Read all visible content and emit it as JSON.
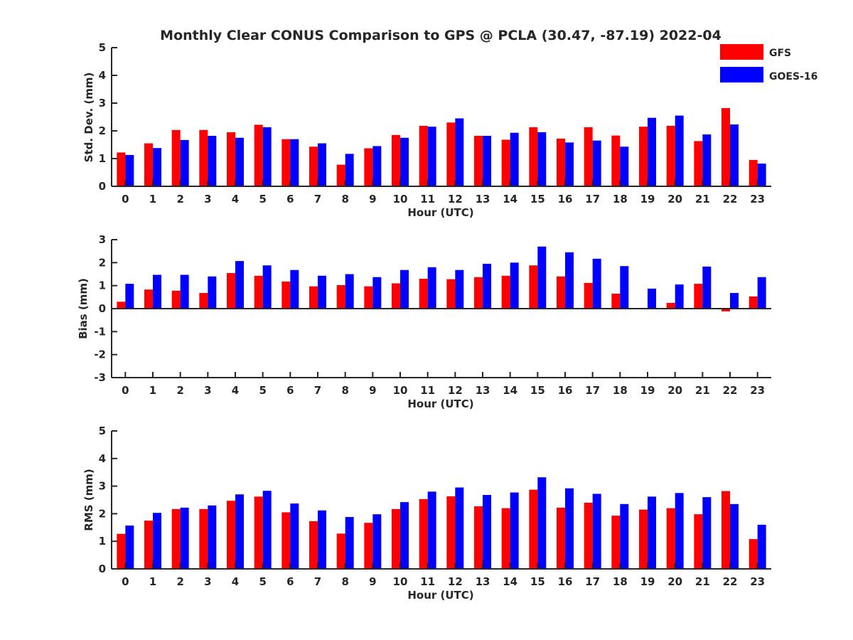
{
  "title": "Monthly Clear CONUS Comparison to GPS @ PCLA (30.47, -87.19) 2022-04",
  "legend": {
    "placement": "top-right",
    "items": [
      {
        "label": "GFS",
        "color": "#ff0000"
      },
      {
        "label": "GOES-16",
        "color": "#0000ff"
      }
    ]
  },
  "chart_data": [
    {
      "type": "bar",
      "xlabel": "Hour (UTC)",
      "ylabel": "Std. Dev. (mm)",
      "ylim": [
        0,
        5
      ],
      "yticks": [
        0,
        1,
        2,
        3,
        4,
        5
      ],
      "categories": [
        "0",
        "1",
        "2",
        "3",
        "4",
        "5",
        "6",
        "7",
        "8",
        "9",
        "10",
        "11",
        "12",
        "13",
        "14",
        "15",
        "16",
        "17",
        "18",
        "19",
        "20",
        "21",
        "22",
        "23"
      ],
      "series": [
        {
          "name": "GFS",
          "color": "#ff0000",
          "values": [
            1.22,
            1.55,
            2.03,
            2.03,
            1.95,
            2.22,
            1.7,
            1.43,
            0.78,
            1.37,
            1.85,
            2.18,
            2.3,
            1.82,
            1.68,
            2.13,
            1.72,
            2.13,
            1.83,
            2.15,
            2.18,
            1.63,
            2.82,
            0.95
          ]
        },
        {
          "name": "GOES-16",
          "color": "#0000ff",
          "values": [
            1.13,
            1.38,
            1.67,
            1.82,
            1.75,
            2.13,
            1.7,
            1.55,
            1.17,
            1.45,
            1.75,
            2.15,
            2.45,
            1.82,
            1.93,
            1.95,
            1.58,
            1.65,
            1.43,
            2.47,
            2.55,
            1.87,
            2.23,
            0.82
          ]
        }
      ]
    },
    {
      "type": "bar",
      "xlabel": "Hour (UTC)",
      "ylabel": "Bias (mm)",
      "ylim": [
        -3,
        3
      ],
      "yticks": [
        -3,
        -2,
        -1,
        0,
        1,
        2,
        3
      ],
      "categories": [
        "0",
        "1",
        "2",
        "3",
        "4",
        "5",
        "6",
        "7",
        "8",
        "9",
        "10",
        "11",
        "12",
        "13",
        "14",
        "15",
        "16",
        "17",
        "18",
        "19",
        "20",
        "21",
        "22",
        "23"
      ],
      "series": [
        {
          "name": "GFS",
          "color": "#ff0000",
          "values": [
            0.3,
            0.83,
            0.78,
            0.68,
            1.55,
            1.43,
            1.18,
            0.97,
            1.02,
            0.97,
            1.1,
            1.3,
            1.28,
            1.37,
            1.43,
            1.88,
            1.4,
            1.12,
            0.65,
            -0.03,
            0.25,
            1.08,
            -0.12,
            0.53
          ]
        },
        {
          "name": "GOES-16",
          "color": "#0000ff",
          "values": [
            1.08,
            1.47,
            1.47,
            1.4,
            2.07,
            1.88,
            1.68,
            1.43,
            1.5,
            1.37,
            1.68,
            1.8,
            1.68,
            1.95,
            2.0,
            2.7,
            2.45,
            2.17,
            1.85,
            0.87,
            1.05,
            1.83,
            0.68,
            1.37
          ]
        }
      ]
    },
    {
      "type": "bar",
      "xlabel": "Hour (UTC)",
      "ylabel": "RMS (mm)",
      "ylim": [
        0,
        5
      ],
      "yticks": [
        0,
        1,
        2,
        3,
        4,
        5
      ],
      "categories": [
        "0",
        "1",
        "2",
        "3",
        "4",
        "5",
        "6",
        "7",
        "8",
        "9",
        "10",
        "11",
        "12",
        "13",
        "14",
        "15",
        "16",
        "17",
        "18",
        "19",
        "20",
        "21",
        "22",
        "23"
      ],
      "series": [
        {
          "name": "GFS",
          "color": "#ff0000",
          "values": [
            1.27,
            1.75,
            2.17,
            2.17,
            2.47,
            2.62,
            2.05,
            1.73,
            1.28,
            1.67,
            2.17,
            2.53,
            2.63,
            2.27,
            2.2,
            2.87,
            2.22,
            2.4,
            1.93,
            2.15,
            2.2,
            1.98,
            2.82,
            1.08
          ]
        },
        {
          "name": "GOES-16",
          "color": "#0000ff",
          "values": [
            1.57,
            2.03,
            2.22,
            2.3,
            2.7,
            2.83,
            2.37,
            2.12,
            1.88,
            1.98,
            2.42,
            2.8,
            2.95,
            2.68,
            2.77,
            3.32,
            2.92,
            2.72,
            2.35,
            2.62,
            2.75,
            2.6,
            2.35,
            1.6
          ]
        }
      ]
    }
  ]
}
